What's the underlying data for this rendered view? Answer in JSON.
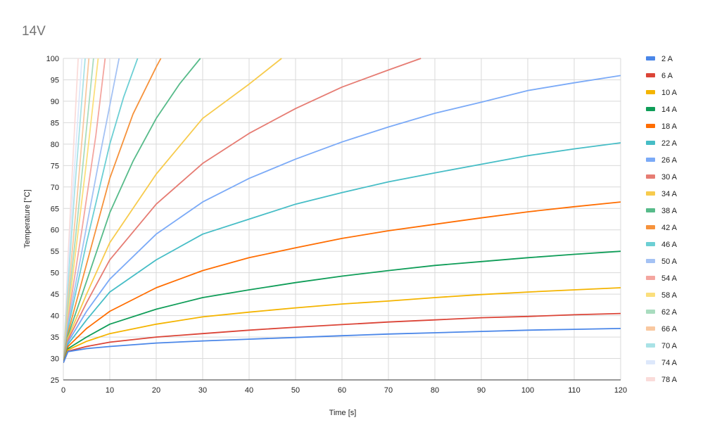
{
  "chart_data": {
    "type": "line",
    "title": "14V",
    "xlabel": "Time [s]",
    "ylabel": "Temperature [°C]",
    "xlim": [
      0,
      120
    ],
    "ylim": [
      25,
      100
    ],
    "x_ticks": [
      0,
      10,
      20,
      30,
      40,
      50,
      60,
      70,
      80,
      90,
      100,
      110,
      120
    ],
    "y_ticks": [
      25,
      30,
      35,
      40,
      45,
      50,
      55,
      60,
      65,
      70,
      75,
      80,
      85,
      90,
      95,
      100
    ],
    "grid": true,
    "legend_position": "right",
    "series": [
      {
        "name": "2 A",
        "color": "#4a86e8",
        "points": [
          [
            0,
            29
          ],
          [
            1,
            31.6
          ],
          [
            5,
            32.3
          ],
          [
            10,
            32.8
          ],
          [
            20,
            33.6
          ],
          [
            30,
            34.1
          ],
          [
            40,
            34.5
          ],
          [
            50,
            34.9
          ],
          [
            60,
            35.3
          ],
          [
            70,
            35.7
          ],
          [
            80,
            36.0
          ],
          [
            90,
            36.3
          ],
          [
            100,
            36.6
          ],
          [
            110,
            36.8
          ],
          [
            120,
            37.0
          ]
        ]
      },
      {
        "name": "6 A",
        "color": "#db4437",
        "points": [
          [
            0,
            29
          ],
          [
            1,
            31.7
          ],
          [
            5,
            32.8
          ],
          [
            10,
            33.8
          ],
          [
            20,
            35.0
          ],
          [
            30,
            35.8
          ],
          [
            40,
            36.6
          ],
          [
            50,
            37.3
          ],
          [
            60,
            37.9
          ],
          [
            70,
            38.5
          ],
          [
            80,
            39.0
          ],
          [
            90,
            39.5
          ],
          [
            100,
            39.8
          ],
          [
            110,
            40.2
          ],
          [
            120,
            40.5
          ]
        ]
      },
      {
        "name": "10 A",
        "color": "#f4b400",
        "points": [
          [
            0,
            29
          ],
          [
            1,
            32.0
          ],
          [
            5,
            34.0
          ],
          [
            10,
            35.8
          ],
          [
            20,
            38.0
          ],
          [
            30,
            39.7
          ],
          [
            40,
            40.8
          ],
          [
            50,
            41.8
          ],
          [
            60,
            42.7
          ],
          [
            70,
            43.4
          ],
          [
            80,
            44.2
          ],
          [
            90,
            44.9
          ],
          [
            100,
            45.5
          ],
          [
            110,
            46.0
          ],
          [
            120,
            46.5
          ]
        ]
      },
      {
        "name": "14 A",
        "color": "#0f9d58",
        "points": [
          [
            0,
            29
          ],
          [
            1,
            32.3
          ],
          [
            5,
            35.0
          ],
          [
            10,
            38.0
          ],
          [
            20,
            41.5
          ],
          [
            30,
            44.2
          ],
          [
            40,
            46.0
          ],
          [
            50,
            47.7
          ],
          [
            60,
            49.2
          ],
          [
            70,
            50.5
          ],
          [
            80,
            51.7
          ],
          [
            90,
            52.6
          ],
          [
            100,
            53.5
          ],
          [
            110,
            54.3
          ],
          [
            120,
            55.0
          ]
        ]
      },
      {
        "name": "18 A",
        "color": "#ff6d01",
        "points": [
          [
            0,
            29
          ],
          [
            1,
            32.8
          ],
          [
            5,
            37.0
          ],
          [
            10,
            41.0
          ],
          [
            20,
            46.5
          ],
          [
            30,
            50.5
          ],
          [
            40,
            53.5
          ],
          [
            50,
            55.8
          ],
          [
            60,
            58.0
          ],
          [
            70,
            59.8
          ],
          [
            80,
            61.3
          ],
          [
            90,
            62.8
          ],
          [
            100,
            64.2
          ],
          [
            110,
            65.4
          ],
          [
            120,
            66.5
          ]
        ]
      },
      {
        "name": "22 A",
        "color": "#46bdc6",
        "points": [
          [
            0,
            29
          ],
          [
            1,
            33.3
          ],
          [
            5,
            39.0
          ],
          [
            10,
            45.5
          ],
          [
            20,
            53.0
          ],
          [
            30,
            59.0
          ],
          [
            40,
            62.5
          ],
          [
            50,
            66.0
          ],
          [
            60,
            68.7
          ],
          [
            70,
            71.2
          ],
          [
            80,
            73.3
          ],
          [
            90,
            75.3
          ],
          [
            100,
            77.3
          ],
          [
            110,
            78.9
          ],
          [
            120,
            80.3
          ]
        ]
      },
      {
        "name": "26 A",
        "color": "#7baaf7",
        "points": [
          [
            0,
            29
          ],
          [
            1,
            33.8
          ],
          [
            5,
            41.0
          ],
          [
            10,
            48.5
          ],
          [
            20,
            59.0
          ],
          [
            30,
            66.5
          ],
          [
            40,
            72.0
          ],
          [
            50,
            76.5
          ],
          [
            60,
            80.5
          ],
          [
            70,
            84.0
          ],
          [
            80,
            87.2
          ],
          [
            90,
            89.8
          ],
          [
            100,
            92.5
          ],
          [
            110,
            94.3
          ],
          [
            120,
            96.0
          ]
        ]
      },
      {
        "name": "30 A",
        "color": "#e67c73",
        "points": [
          [
            0,
            29
          ],
          [
            1,
            34.3
          ],
          [
            5,
            43.0
          ],
          [
            10,
            53.0
          ],
          [
            20,
            66.0
          ],
          [
            30,
            75.5
          ],
          [
            40,
            82.5
          ],
          [
            50,
            88.3
          ],
          [
            60,
            93.3
          ],
          [
            70,
            97.3
          ],
          [
            77,
            100
          ]
        ]
      },
      {
        "name": "34 A",
        "color": "#f7cb4d",
        "points": [
          [
            0,
            29
          ],
          [
            1,
            34.8
          ],
          [
            5,
            45.0
          ],
          [
            10,
            57.0
          ],
          [
            20,
            73.0
          ],
          [
            30,
            86.0
          ],
          [
            40,
            94.0
          ],
          [
            47,
            100
          ]
        ]
      },
      {
        "name": "38 A",
        "color": "#57bb8a",
        "points": [
          [
            0,
            29
          ],
          [
            1,
            35.3
          ],
          [
            5,
            48.0
          ],
          [
            10,
            64.0
          ],
          [
            15,
            76.0
          ],
          [
            20,
            86.0
          ],
          [
            25,
            94.0
          ],
          [
            29.5,
            100
          ]
        ]
      },
      {
        "name": "42 A",
        "color": "#f6923b",
        "points": [
          [
            0,
            29
          ],
          [
            1,
            36.0
          ],
          [
            5,
            52.0
          ],
          [
            10,
            72.0
          ],
          [
            15,
            87.0
          ],
          [
            20,
            98.0
          ],
          [
            21,
            100
          ]
        ]
      },
      {
        "name": "46 A",
        "color": "#6ccfd4",
        "points": [
          [
            0,
            29
          ],
          [
            1,
            37.0
          ],
          [
            5,
            57.0
          ],
          [
            10,
            80.0
          ],
          [
            13,
            91.0
          ],
          [
            16,
            100
          ]
        ]
      },
      {
        "name": "50 A",
        "color": "#a4c2f4",
        "points": [
          [
            0,
            29
          ],
          [
            1,
            38.0
          ],
          [
            4,
            55.0
          ],
          [
            8,
            78.0
          ],
          [
            12,
            100
          ]
        ]
      },
      {
        "name": "54 A",
        "color": "#f4a6a0",
        "points": [
          [
            0,
            29
          ],
          [
            1,
            39.0
          ],
          [
            4,
            60.0
          ],
          [
            7,
            82.0
          ],
          [
            9,
            100
          ]
        ]
      },
      {
        "name": "58 A",
        "color": "#fbdf7c",
        "points": [
          [
            0,
            29
          ],
          [
            1,
            40.0
          ],
          [
            3,
            58.0
          ],
          [
            5,
            76.0
          ],
          [
            7.5,
            100
          ]
        ]
      },
      {
        "name": "62 A",
        "color": "#a9dcbf",
        "points": [
          [
            0,
            29
          ],
          [
            1,
            42.0
          ],
          [
            3,
            62.0
          ],
          [
            6.5,
            100
          ]
        ]
      },
      {
        "name": "66 A",
        "color": "#f9c8a0",
        "points": [
          [
            0,
            29
          ],
          [
            1,
            44.0
          ],
          [
            3,
            68.0
          ],
          [
            5.5,
            100
          ]
        ]
      },
      {
        "name": "70 A",
        "color": "#a9e2e6",
        "points": [
          [
            0,
            29
          ],
          [
            1,
            47.0
          ],
          [
            2.5,
            70.0
          ],
          [
            4.7,
            100
          ]
        ]
      },
      {
        "name": "74 A",
        "color": "#dde8fb",
        "points": [
          [
            0,
            29
          ],
          [
            1,
            50.0
          ],
          [
            2,
            68.0
          ],
          [
            4,
            100
          ]
        ]
      },
      {
        "name": "78 A",
        "color": "#fadcda",
        "points": [
          [
            0,
            29
          ],
          [
            1,
            53.0
          ],
          [
            2,
            75.0
          ],
          [
            3.2,
            100
          ]
        ]
      }
    ]
  }
}
